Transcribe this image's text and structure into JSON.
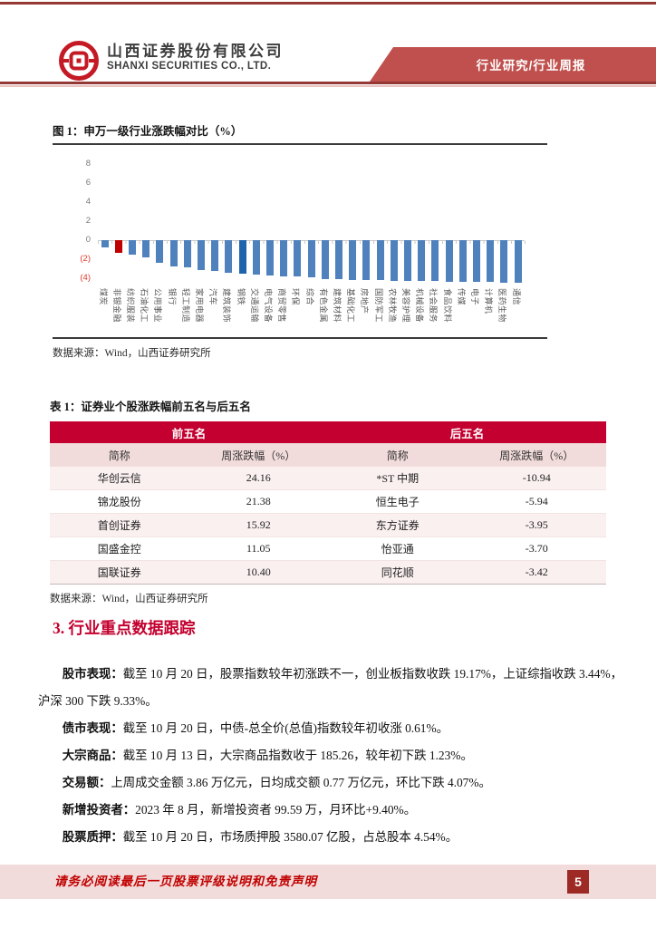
{
  "header": {
    "company_cn": "山西证券股份有限公司",
    "company_en": "SHANXI SECURITIES CO., LTD.",
    "banner": "行业研究/行业周报"
  },
  "figure": {
    "title": "图 1：申万一级行业涨跌幅对比（%）",
    "source": "数据来源：Wind，山西证券研究所"
  },
  "chart_data": {
    "type": "bar",
    "title": "申万一级行业涨跌幅对比（%）",
    "categories": [
      "煤炭",
      "非银金融",
      "纺织服装",
      "石油化工",
      "公用事业",
      "银行",
      "轻工制造",
      "家用电器",
      "汽车",
      "建筑装饰",
      "钢铁",
      "交通运输",
      "电气设备",
      "商贸零售",
      "环保",
      "综合",
      "有色金属",
      "建筑材料",
      "基础化工",
      "房地产",
      "国防军工",
      "农林牧渔",
      "美容护理",
      "机械设备",
      "社会服务",
      "食品饮料",
      "传媒",
      "电子",
      "计算机",
      "医药生物",
      "通信"
    ],
    "values": [
      -0.8,
      -1.3,
      -1.55,
      -1.8,
      -2.4,
      -2.75,
      -2.9,
      -3.1,
      -3.25,
      -3.4,
      -3.5,
      -3.65,
      -3.75,
      -3.8,
      -3.85,
      -3.95,
      -4.05,
      -4.1,
      -4.15,
      -4.2,
      -4.2,
      -4.25,
      -4.25,
      -4.3,
      -4.3,
      -4.35,
      -4.35,
      -4.4,
      -4.4,
      -4.45,
      -4.5
    ],
    "yticks": [
      8,
      6,
      4,
      2,
      0,
      -2,
      -4
    ],
    "ylim": [
      -5,
      9
    ],
    "grid": false,
    "legend": false,
    "bar_color": "#4f81bd",
    "highlight_colors": {
      "1": "#c00000",
      "10": "#1f63ad"
    },
    "negative_tick_color": "#e03a2a"
  },
  "table": {
    "title": "表 1：证券业个股涨跌幅前五名与后五名",
    "group_headers": [
      "前五名",
      "后五名"
    ],
    "col_headers": [
      "简称",
      "周涨跌幅（%）",
      "简称",
      "周涨跌幅（%）"
    ],
    "rows": [
      {
        "l_name": "华创云信",
        "l_chg": "24.16",
        "r_name": "*ST 中期",
        "r_chg": "-10.94"
      },
      {
        "l_name": "锦龙股份",
        "l_chg": "21.38",
        "r_name": "恒生电子",
        "r_chg": "-5.94"
      },
      {
        "l_name": "首创证券",
        "l_chg": "15.92",
        "r_name": "东方证券",
        "r_chg": "-3.95"
      },
      {
        "l_name": "国盛金控",
        "l_chg": "11.05",
        "r_name": "怡亚通",
        "r_chg": "-3.70"
      },
      {
        "l_name": "国联证券",
        "l_chg": "10.40",
        "r_name": "同花顺",
        "r_chg": "-3.42"
      }
    ],
    "source": "数据来源：Wind，山西证券研究所"
  },
  "section": {
    "heading": "3. 行业重点数据跟踪",
    "paragraphs": [
      {
        "label": "股市表现：",
        "text": "截至 10 月 20 日，股票指数较年初涨跌不一，创业板指数收跌 19.17%，上证综指收跌 3.44%，沪深 300 下跌 9.33%。"
      },
      {
        "label": "债市表现：",
        "text": "截至 10 月 20 日，中债-总全价(总值)指数较年初收涨 0.61%。"
      },
      {
        "label": "大宗商品：",
        "text": "截至 10 月 13 日，大宗商品指数收于 185.26，较年初下跌 1.23%。"
      },
      {
        "label": "交易额：",
        "text": "上周成交金额 3.86 万亿元，日均成交额 0.77 万亿元，环比下跌 4.07%。"
      },
      {
        "label": "新增投资者：",
        "text": "2023 年 8 月，新增投资者 99.59 万，月环比+9.40%。"
      },
      {
        "label": "股票质押：",
        "text": "截至 10 月 20 日，市场质押股 3580.07 亿股，占总股本 4.54%。"
      }
    ]
  },
  "footer": {
    "disclaimer": "请务必阅读最后一页股票评级说明和免责声明",
    "page_number": "5"
  },
  "colors": {
    "brand_red": "#c3002f",
    "banner_red": "#c0504d",
    "rule_red": "#953735",
    "band_pink": "#f2dcdb",
    "row_pink": "#faf0f0",
    "pagebox_red": "#9e2a25",
    "footer_text_red": "#c00000"
  }
}
